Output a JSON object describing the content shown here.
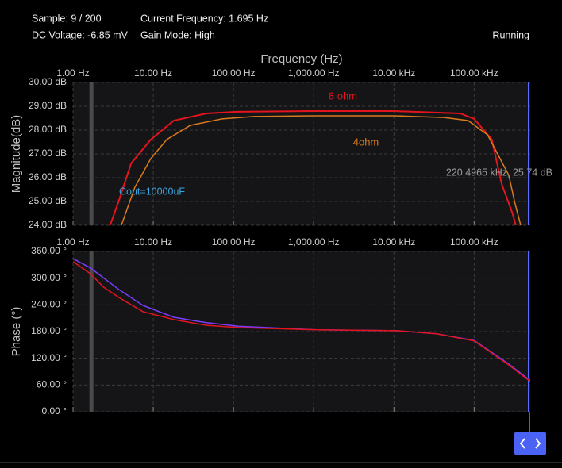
{
  "header": {
    "sample": "Sample: 9 / 200",
    "frequency": "Current Frequency: 1.695 Hz",
    "voltage": "DC Voltage: -6.85 mV",
    "gain": "Gain Mode: High",
    "status": "Running"
  },
  "chart_data": [
    {
      "type": "line",
      "xlabel": "Frequency (Hz)",
      "ylabel": "Magnitude(dB)",
      "log_x": true,
      "grid": true,
      "xlim": [
        1,
        500000
      ],
      "ylim": [
        24,
        30
      ],
      "cursor_x": 1.695,
      "xticks": [
        {
          "value": 1,
          "label": "1.00 Hz"
        },
        {
          "value": 10,
          "label": "10.00 Hz"
        },
        {
          "value": 100,
          "label": "100.00 Hz"
        },
        {
          "value": 1000,
          "label": "1,000.00 Hz"
        },
        {
          "value": 10000,
          "label": "10.00 kHz"
        },
        {
          "value": 100000,
          "label": "100.00 kHz"
        }
      ],
      "yticks": [
        {
          "value": 24,
          "label": "24.00 dB"
        },
        {
          "value": 25,
          "label": "25.00 dB"
        },
        {
          "value": 26,
          "label": "26.00 dB"
        },
        {
          "value": 27,
          "label": "27.00 dB"
        },
        {
          "value": 28,
          "label": "28.00 dB"
        },
        {
          "value": 29,
          "label": "29.00 dB"
        },
        {
          "value": 30,
          "label": "30.00 dB"
        }
      ],
      "annotations": [
        "Cout=10000uF",
        "220.4965 kHz, 25.74 dB"
      ],
      "series": [
        {
          "name": "8 ohm",
          "color": "#e3141e",
          "x": [
            2.9,
            3.7,
            5.3,
            9.3,
            18,
            46,
            110,
            1000,
            10000,
            67000,
            100000,
            166000,
            220000,
            300000,
            330000
          ],
          "values": [
            24.0,
            25.0,
            26.6,
            27.6,
            28.4,
            28.7,
            28.77,
            28.8,
            28.8,
            28.7,
            28.47,
            27.6,
            25.74,
            24.5,
            24.0
          ]
        },
        {
          "name": "4ohm",
          "color": "#d97a1c",
          "x": [
            4,
            5.9,
            9.3,
            14.7,
            29,
            72,
            180,
            1000,
            10000,
            42000,
            84000,
            147000,
            270000,
            320000,
            380000
          ],
          "values": [
            24.0,
            25.6,
            26.8,
            27.6,
            28.2,
            28.47,
            28.57,
            28.6,
            28.6,
            28.53,
            28.4,
            27.8,
            26.1,
            24.97,
            24.0
          ]
        }
      ]
    },
    {
      "type": "line",
      "ylabel": "Phase (°)",
      "log_x": true,
      "grid": true,
      "xlim": [
        1,
        500000
      ],
      "ylim": [
        0,
        360
      ],
      "cursor_x": 1.695,
      "xticks": [
        {
          "value": 1,
          "label": "1.00 Hz"
        },
        {
          "value": 10,
          "label": "10.00 Hz"
        },
        {
          "value": 100,
          "label": "100.00 Hz"
        },
        {
          "value": 1000,
          "label": "1,000.00 Hz"
        },
        {
          "value": 10000,
          "label": "10.00 kHz"
        },
        {
          "value": 100000,
          "label": "100.00 kHz"
        }
      ],
      "yticks": [
        {
          "value": 0,
          "label": "0.00 °"
        },
        {
          "value": 60,
          "label": "60.00 °"
        },
        {
          "value": 120,
          "label": "120.00 °"
        },
        {
          "value": 180,
          "label": "180.00 °"
        },
        {
          "value": 240,
          "label": "240.00 °"
        },
        {
          "value": 300,
          "label": "300.00 °"
        },
        {
          "value": 360,
          "label": "360.00 °"
        }
      ],
      "series": [
        {
          "color": "#7b3cff",
          "x": [
            1,
            1.65,
            3.7,
            7.4,
            18,
            46,
            114,
            1100,
            10900,
            34000,
            100000,
            270000,
            500000
          ],
          "values": [
            344,
            323,
            275,
            239,
            212,
            200,
            192,
            184,
            182,
            175,
            160,
            107,
            70
          ]
        },
        {
          "color": "#e3141e",
          "x": [
            1,
            1.65,
            2.4,
            3.7,
            7.4,
            18,
            46,
            114,
            1100,
            10900,
            34000,
            100000,
            270000,
            500000
          ],
          "values": [
            337,
            310,
            280,
            257,
            225,
            207,
            194,
            189,
            184,
            182,
            175,
            159,
            105,
            68
          ]
        }
      ]
    }
  ]
}
